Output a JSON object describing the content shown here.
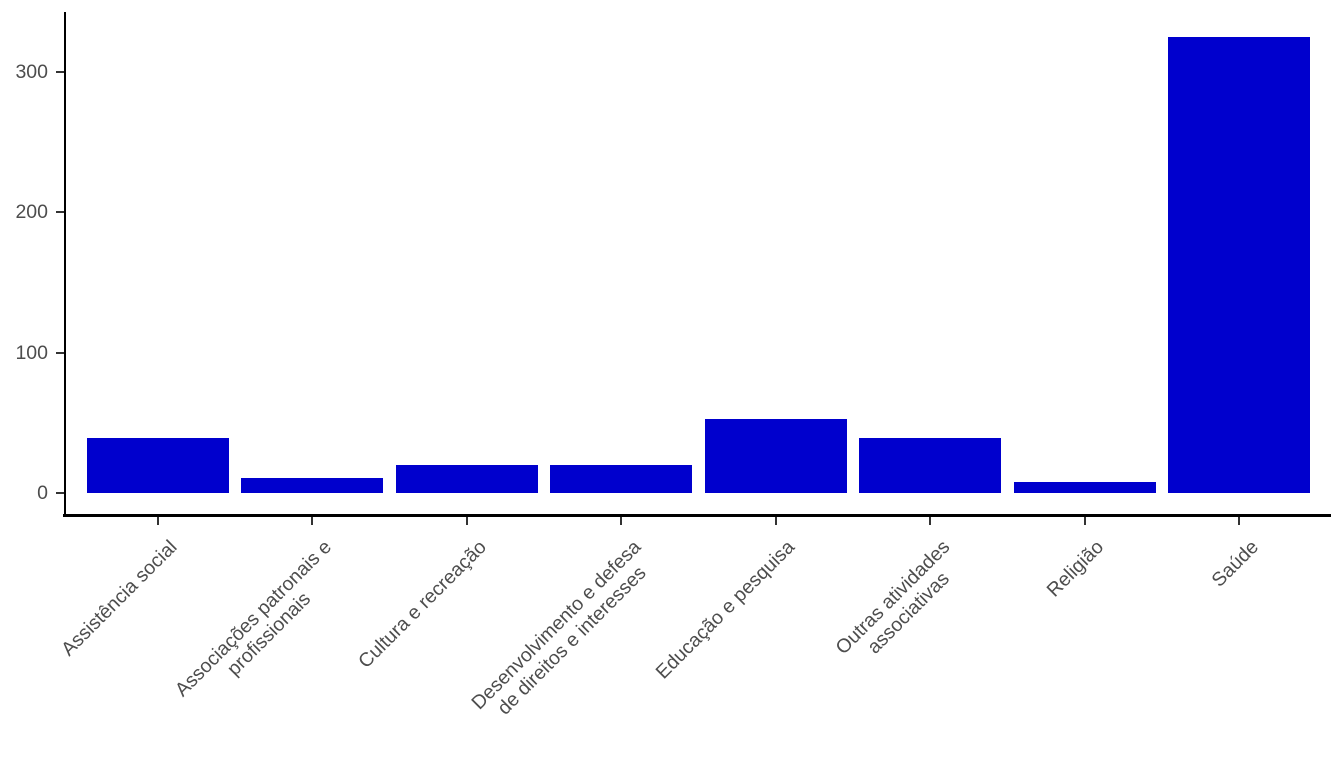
{
  "chart_data": {
    "type": "bar",
    "title": "",
    "xlabel": "",
    "ylabel": "",
    "categories": [
      "Assistência social",
      "Associações patronais e profissionais",
      "Cultura e recreação",
      "Desenvolvimento e defesa de direitos e interesses",
      "Educação e pesquisa",
      "Outras atividades associativas",
      "Religião",
      "Saúde"
    ],
    "category_label_lines": [
      [
        "Assistência social"
      ],
      [
        "Associações patronais e",
        "profissionais"
      ],
      [
        "Cultura e recreação"
      ],
      [
        "Desenvolvimento e defesa",
        "de direitos e interesses"
      ],
      [
        "Educação e pesquisa"
      ],
      [
        "Outras atividades",
        "associativas"
      ],
      [
        "Religião"
      ],
      [
        "Saúde"
      ]
    ],
    "values": [
      39,
      11,
      20,
      20,
      53,
      39,
      8,
      325
    ],
    "yticks": [
      0,
      100,
      200,
      300
    ],
    "ylim": [
      -16.25,
      341.25
    ],
    "grid": false,
    "legend": "none",
    "x_label_rotation_deg": 45,
    "colors": {
      "bar": "#0000CD",
      "axis_line": "#000000",
      "tick_mark": "#333333",
      "tick_text": "#4D4D4D",
      "background": "#FFFFFF"
    }
  }
}
